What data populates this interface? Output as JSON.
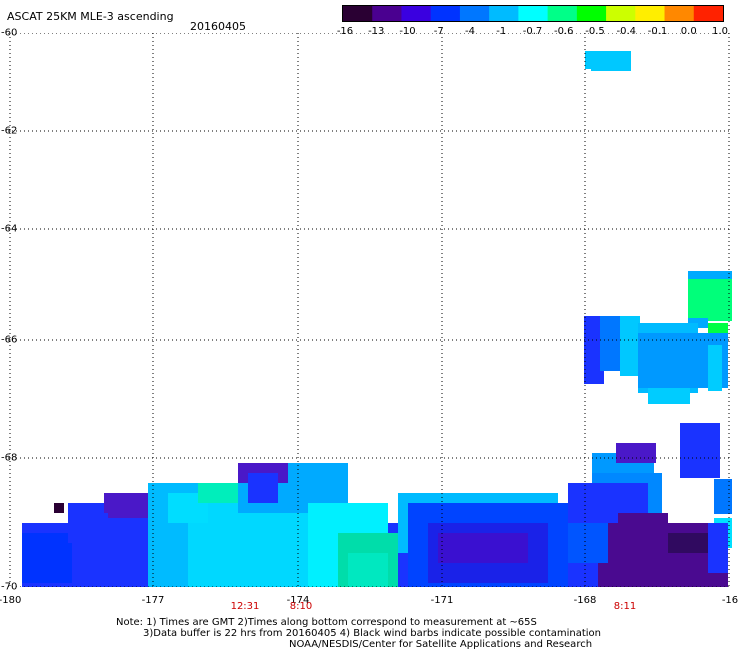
{
  "header": {
    "title": "ASCAT 25KM MLE-3 ascending",
    "date": "20160405"
  },
  "colorbar": {
    "labels": [
      "-16",
      "-13",
      "-10",
      "-7",
      "-4",
      "-1",
      "-0.7",
      "-0.6",
      "-0.5",
      "-0.4",
      "-0.1",
      "0.0",
      "1.0"
    ],
    "colors": [
      "#2a0033",
      "#4a0090",
      "#3a00e0",
      "#0033ff",
      "#0077ff",
      "#00bbff",
      "#00ffff",
      "#00ff88",
      "#00ff00",
      "#ccff00",
      "#ffee00",
      "#ff8800",
      "#ff2200"
    ]
  },
  "axes": {
    "y_labels": [
      "-60",
      "-62",
      "-64",
      "-66",
      "-68",
      "-70"
    ],
    "x_labels": [
      "-180",
      "-177",
      "-174",
      "-171",
      "-168",
      "-16"
    ]
  },
  "time_labels": [
    "12:31",
    "8:10",
    "8:11"
  ],
  "notes": {
    "line1": "Note: 1) Times are GMT 2)Times along bottom correspond to measurement at ~65S",
    "line2": "3)Data buffer is 22 hrs from 20160405 4) Black wind barbs indicate possible contamination",
    "line3": "NOAA/NESDIS/Center for Satellite Applications and Research"
  }
}
